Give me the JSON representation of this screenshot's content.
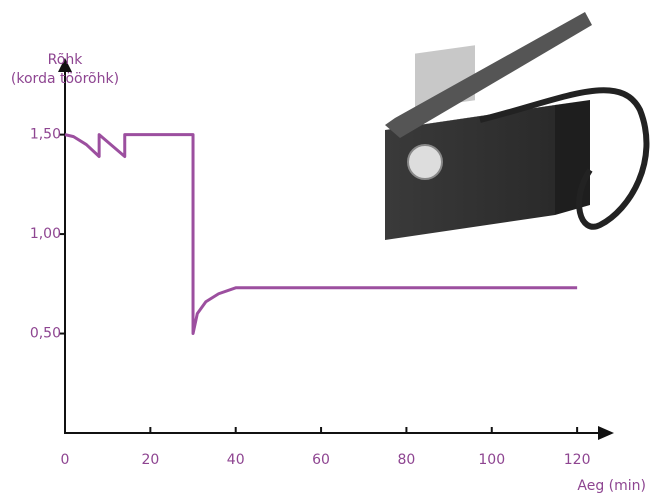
{
  "chart_data": {
    "type": "line",
    "ylabel": [
      "Rõhk",
      "(korda töörõhk)"
    ],
    "xlabel": "Aeg (min)",
    "x": [
      0,
      2,
      5,
      8,
      8,
      14,
      14,
      30,
      30,
      31,
      33,
      36,
      40,
      120
    ],
    "series": [
      {
        "color": "#9c4f9f",
        "values": [
          1.5,
          1.49,
          1.45,
          1.39,
          1.5,
          1.39,
          1.5,
          1.5,
          0.5,
          0.6,
          0.66,
          0.7,
          0.73,
          0.73
        ]
      }
    ],
    "xlim": [
      0,
      127
    ],
    "ylim": [
      0,
      1.85
    ],
    "xticks": [
      0,
      20,
      40,
      60,
      80,
      100,
      120
    ],
    "yticks": [
      {
        "value": 0.5,
        "label": "0,50"
      },
      {
        "value": 1.0,
        "label": "1,00"
      },
      {
        "value": 1.5,
        "label": "1,50"
      }
    ],
    "grid": false
  }
}
